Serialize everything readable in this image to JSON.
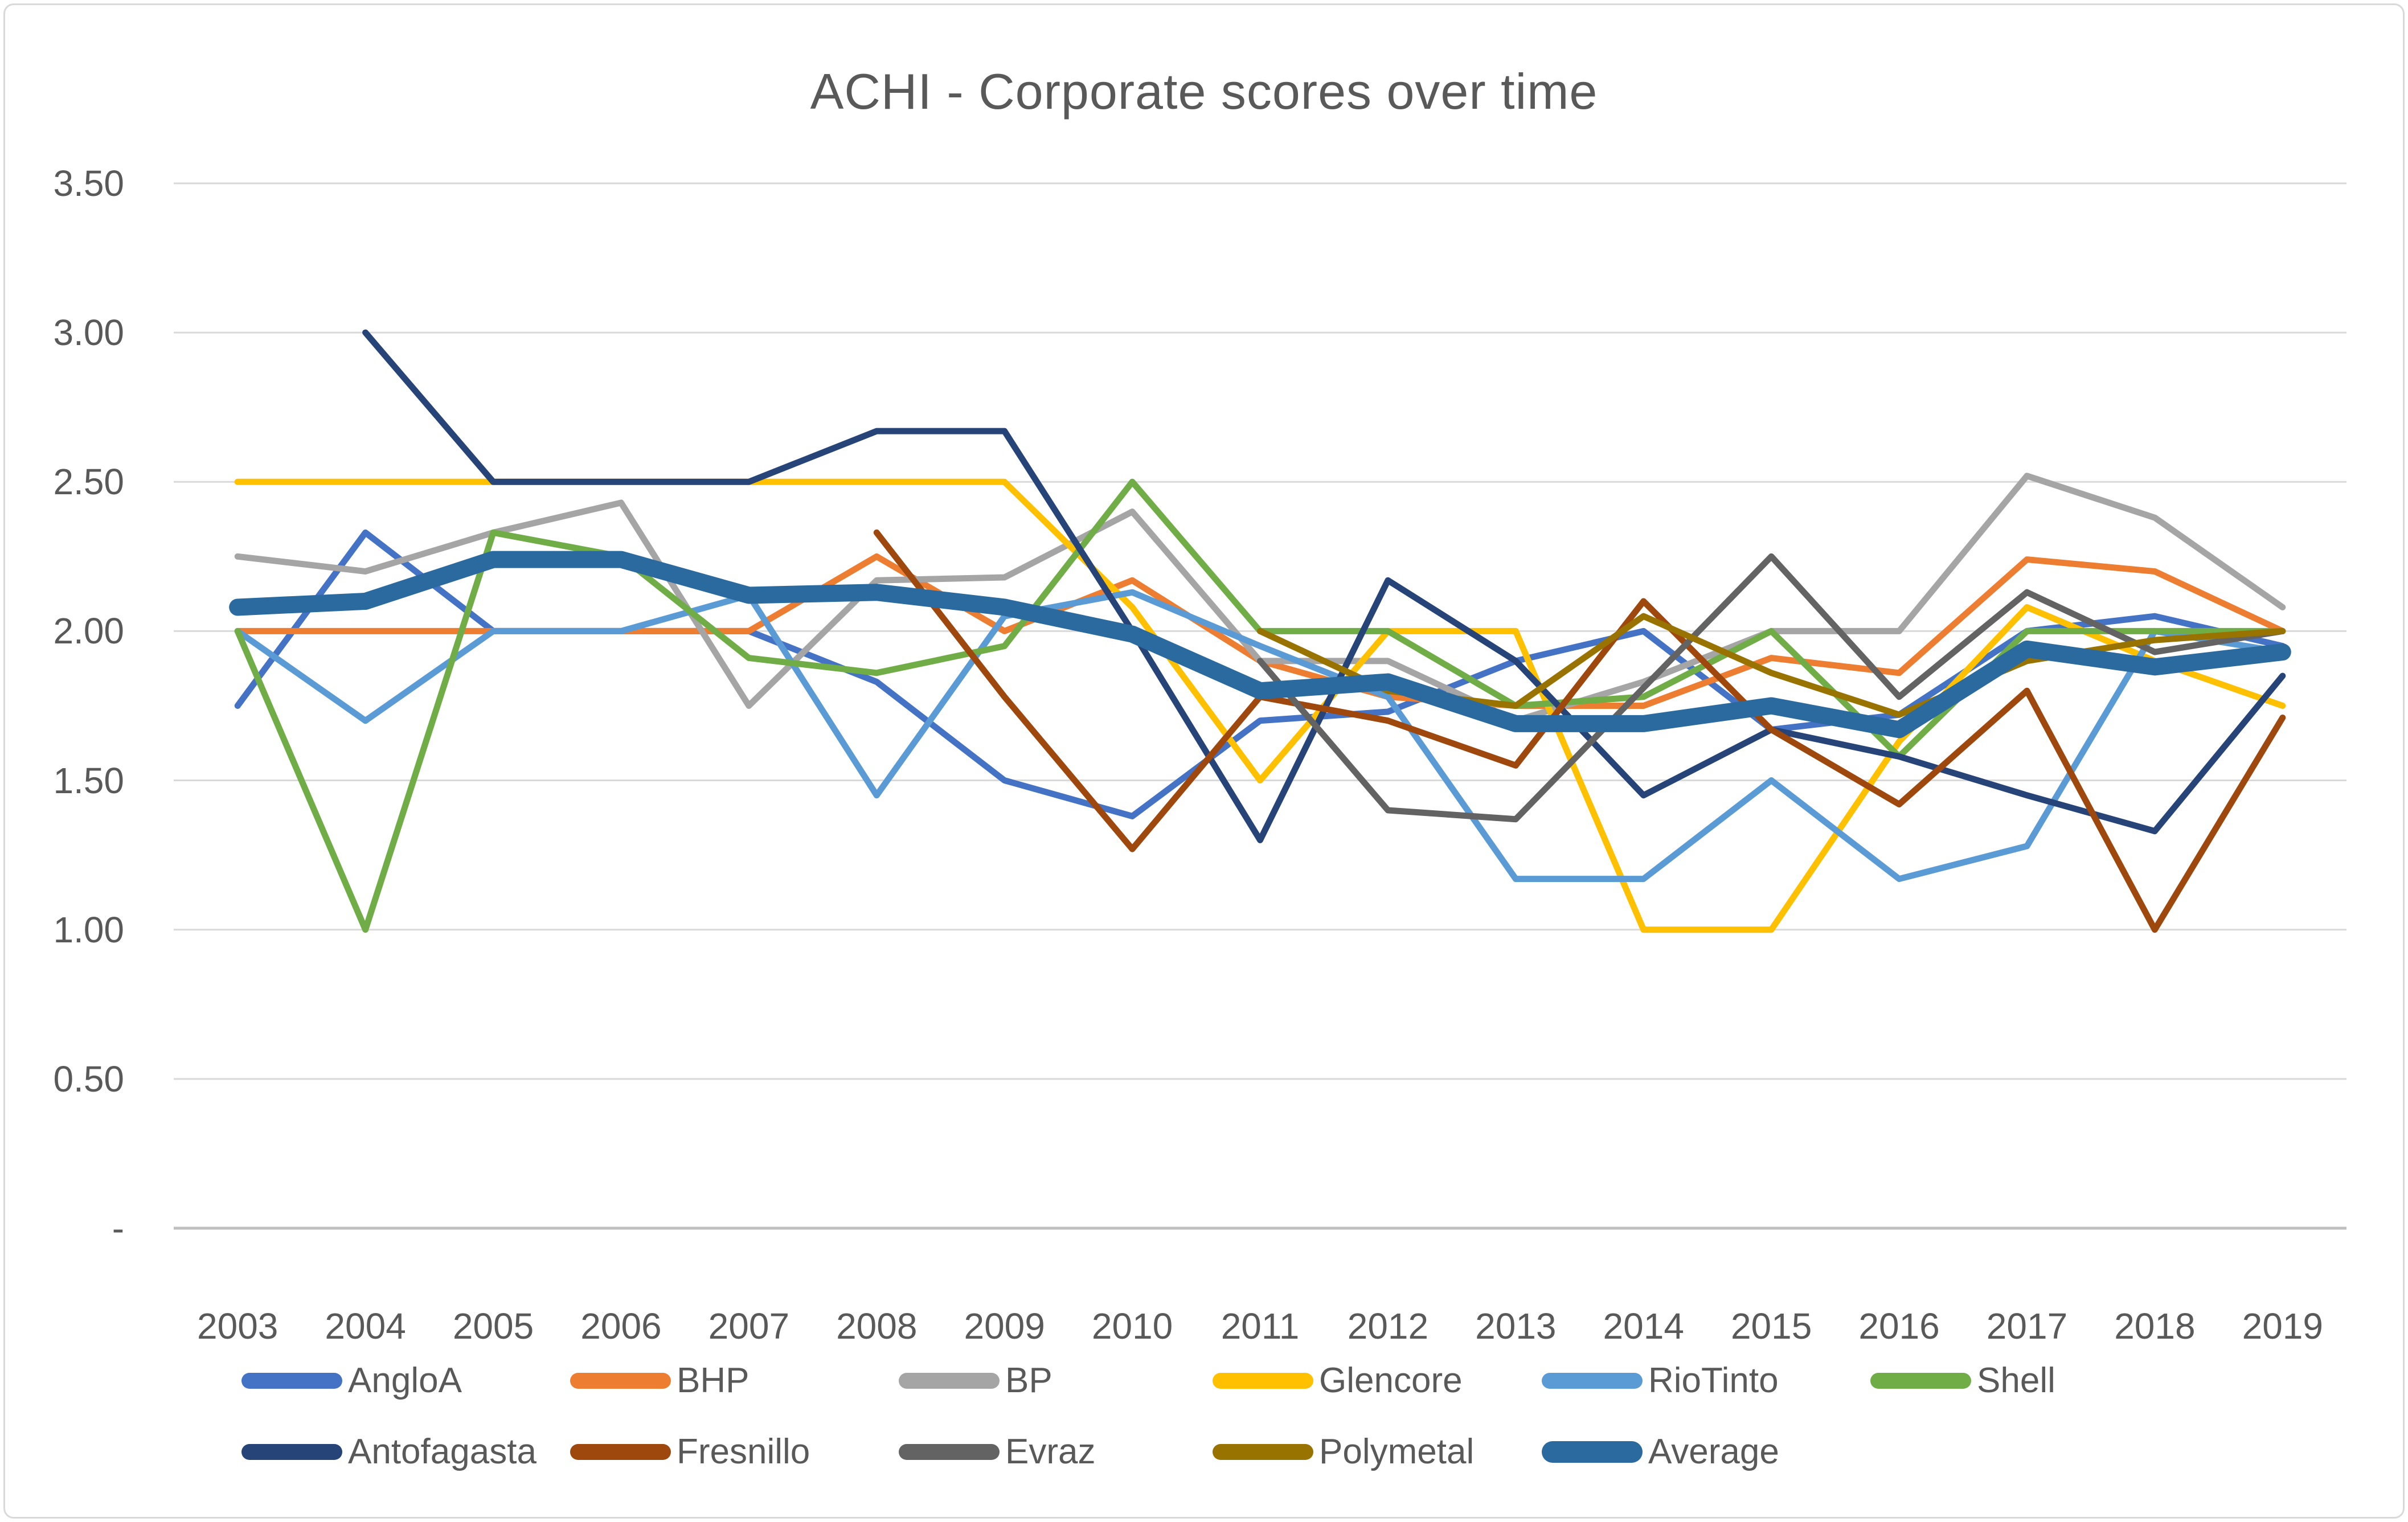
{
  "title": "ACHI - Corporate scores over time",
  "axis_text_color": "#595959",
  "gridline_color": "#d9d9d9",
  "axis_line_color": "#bfbfbf",
  "chart_data": {
    "type": "line",
    "title": "ACHI - Corporate scores over time",
    "x": [
      "2003",
      "2004",
      "2005",
      "2006",
      "2007",
      "2008",
      "2009",
      "2010",
      "2011",
      "2012",
      "2013",
      "2014",
      "2015",
      "2016",
      "2017",
      "2018",
      "2019"
    ],
    "ylim": [
      0,
      3.5
    ],
    "grid": true,
    "legend_position": "bottom",
    "yticks": [
      {
        "v": 3.5,
        "label": "3.50"
      },
      {
        "v": 3.0,
        "label": "3.00"
      },
      {
        "v": 2.5,
        "label": "2.50"
      },
      {
        "v": 2.0,
        "label": "2.00"
      },
      {
        "v": 1.5,
        "label": "1.50"
      },
      {
        "v": 1.0,
        "label": "1.00"
      },
      {
        "v": 0.5,
        "label": "0.50"
      },
      {
        "v": 0.0,
        "label": "-"
      }
    ],
    "series": [
      {
        "name": "AngloA",
        "color": "#4472C4",
        "width": 11,
        "values": [
          1.75,
          2.33,
          2.0,
          2.0,
          2.0,
          1.83,
          1.5,
          1.38,
          1.7,
          1.73,
          1.9,
          2.0,
          1.67,
          1.72,
          2.0,
          2.05,
          1.95
        ]
      },
      {
        "name": "BHP",
        "color": "#ED7D31",
        "width": 11,
        "values": [
          2.0,
          2.0,
          2.0,
          2.0,
          2.0,
          2.25,
          2.0,
          2.17,
          1.9,
          1.78,
          1.75,
          1.75,
          1.91,
          1.86,
          2.24,
          2.2,
          2.0
        ]
      },
      {
        "name": "BP",
        "color": "#A5A5A5",
        "width": 11,
        "values": [
          2.25,
          2.2,
          2.33,
          2.43,
          1.75,
          2.17,
          2.18,
          2.4,
          1.9,
          1.9,
          1.7,
          1.83,
          2.0,
          2.0,
          2.52,
          2.38,
          2.08
        ]
      },
      {
        "name": "Glencore",
        "color": "#FFC000",
        "width": 11,
        "values": [
          2.5,
          2.5,
          2.5,
          2.5,
          2.5,
          2.5,
          2.5,
          2.08,
          1.5,
          2.0,
          2.0,
          1.0,
          1.0,
          1.63,
          2.08,
          1.9,
          1.75
        ]
      },
      {
        "name": "RioTinto",
        "color": "#5B9BD5",
        "width": 11,
        "values": [
          2.0,
          1.7,
          2.0,
          2.0,
          2.12,
          1.45,
          2.05,
          2.13,
          1.95,
          1.78,
          1.17,
          1.17,
          1.5,
          1.17,
          1.28,
          2.0,
          1.93
        ]
      },
      {
        "name": "Shell",
        "color": "#70AD47",
        "width": 11,
        "values": [
          2.0,
          1.0,
          2.33,
          2.25,
          1.91,
          1.86,
          1.95,
          2.5,
          2.0,
          2.0,
          1.75,
          1.78,
          2.0,
          1.58,
          2.0,
          2.0,
          2.0
        ]
      },
      {
        "name": "Antofagasta",
        "color": "#264478",
        "width": 11,
        "values": [
          null,
          3.0,
          2.5,
          2.5,
          2.5,
          2.67,
          2.67,
          2.0,
          1.3,
          2.17,
          1.9,
          1.45,
          1.67,
          1.58,
          1.45,
          1.33,
          1.85
        ]
      },
      {
        "name": "Fresnillo",
        "color": "#9E480E",
        "width": 11,
        "values": [
          null,
          null,
          null,
          null,
          null,
          2.33,
          1.78,
          1.27,
          1.78,
          1.7,
          1.55,
          2.1,
          1.67,
          1.42,
          1.8,
          1.0,
          1.71
        ]
      },
      {
        "name": "Evraz",
        "color": "#636363",
        "width": 11,
        "values": [
          null,
          null,
          null,
          null,
          null,
          null,
          null,
          null,
          1.9,
          1.4,
          1.37,
          1.81,
          2.25,
          1.78,
          2.13,
          1.93,
          2.0
        ]
      },
      {
        "name": "Polymetal",
        "color": "#997300",
        "width": 11,
        "values": [
          null,
          null,
          null,
          null,
          null,
          null,
          null,
          null,
          2.0,
          1.8,
          1.75,
          2.05,
          1.86,
          1.72,
          1.9,
          1.97,
          2.0
        ]
      },
      {
        "name": "Average",
        "color": "#2B6A9E",
        "width": 30,
        "values": [
          2.08,
          2.1,
          2.24,
          2.24,
          2.12,
          2.13,
          2.08,
          1.99,
          1.8,
          1.83,
          1.69,
          1.69,
          1.75,
          1.67,
          1.94,
          1.88,
          1.93
        ]
      }
    ]
  },
  "legend": {
    "rows": [
      [
        "AngloA",
        "BHP",
        "BP",
        "Glencore",
        "RioTinto",
        "Shell"
      ],
      [
        "Antofagasta",
        "Fresnillo",
        "Evraz",
        "Polymetal",
        "Average"
      ]
    ]
  }
}
